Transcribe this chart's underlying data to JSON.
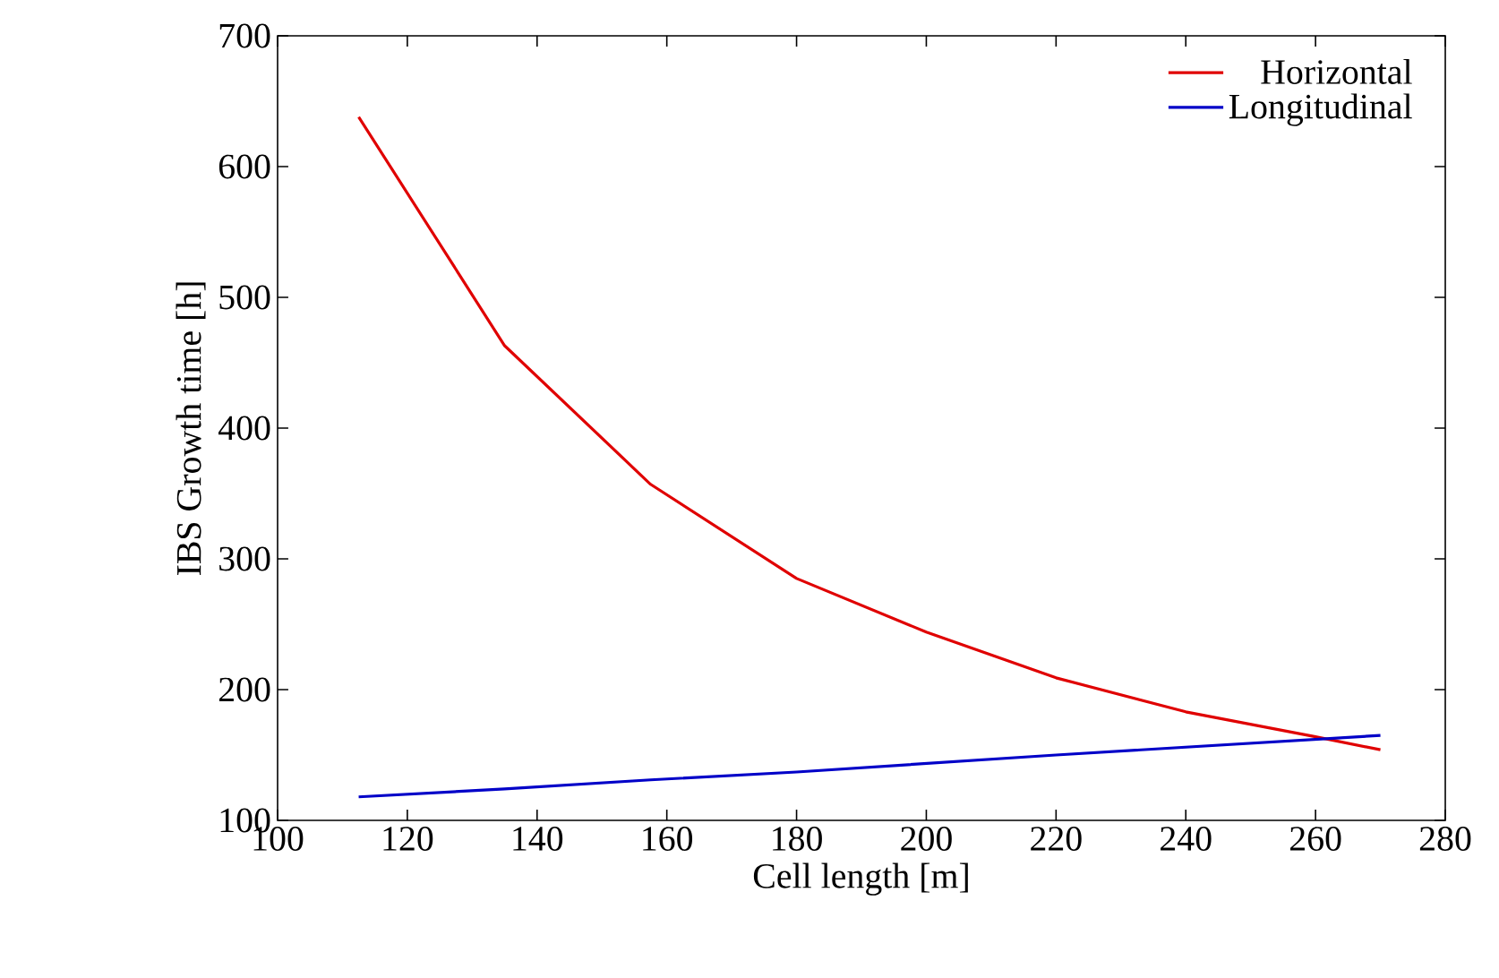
{
  "chart_data": {
    "type": "line",
    "xlabel": "Cell length [m]",
    "ylabel": "IBS Growth time [h]",
    "xlim": [
      100,
      280
    ],
    "xticks": [
      100,
      120,
      140,
      160,
      180,
      200,
      220,
      240,
      260,
      280
    ],
    "ylim": [
      100,
      700
    ],
    "yticks": [
      100,
      200,
      300,
      400,
      500,
      600,
      700
    ],
    "legend": "top right",
    "grid": false,
    "series": [
      {
        "name": "Horizontal",
        "color": "#e00000",
        "x": [
          112.5,
          135,
          157.5,
          180,
          200,
          220,
          240,
          260,
          270
        ],
        "values": [
          638,
          463,
          357,
          285,
          244,
          209,
          183,
          164,
          154
        ]
      },
      {
        "name": "Longitudinal",
        "color": "#0000c8",
        "x": [
          112.5,
          135,
          157.5,
          180,
          220,
          270
        ],
        "values": [
          118,
          124,
          131,
          137,
          150,
          165
        ]
      }
    ]
  }
}
